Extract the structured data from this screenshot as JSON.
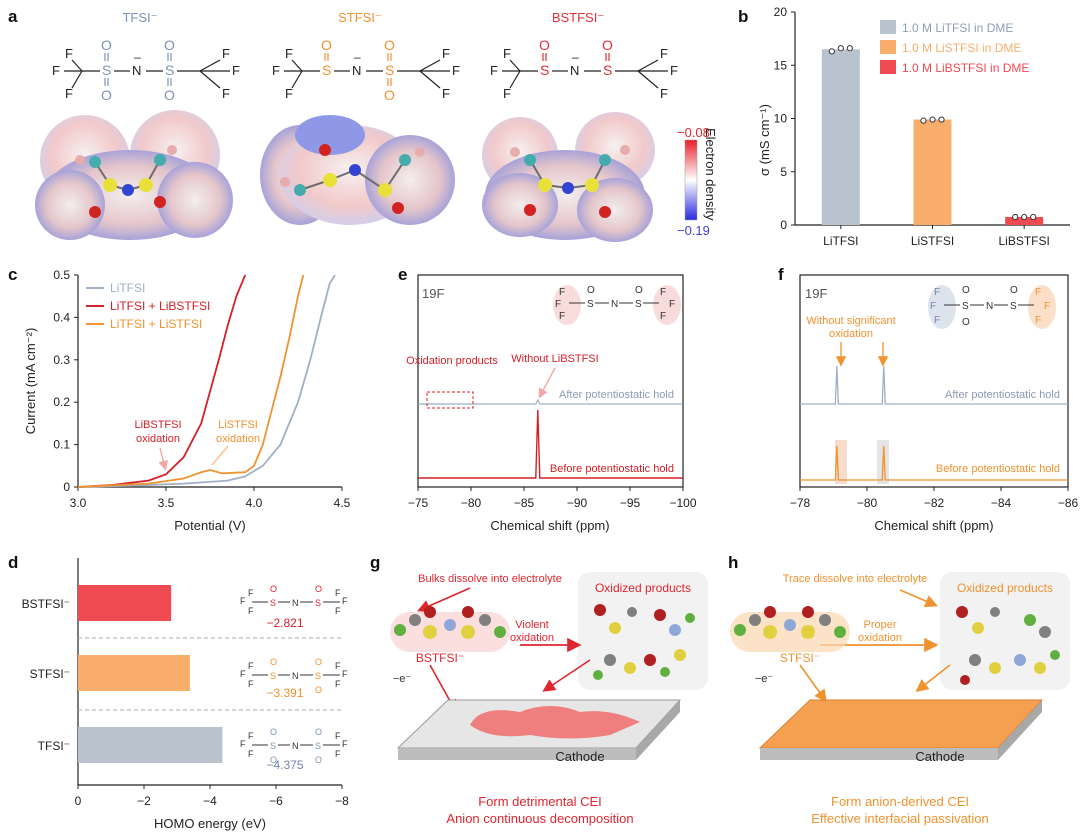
{
  "panels": {
    "a": {
      "label": "a",
      "anions": [
        {
          "name": "TFSI⁻",
          "color": "#7a93b8"
        },
        {
          "name": "STFSI⁻",
          "color": "#f0922e"
        },
        {
          "name": "BSTFSI⁻",
          "color": "#e0303a"
        }
      ],
      "colorbar": {
        "max": "−0.08",
        "min": "−0.19",
        "label": "Electron density"
      }
    },
    "b": {
      "label": "b"
    },
    "c": {
      "label": "c"
    },
    "d": {
      "label": "d"
    },
    "e": {
      "label": "e",
      "nucleus": "19F",
      "annotations": {
        "oxidation_products": "Oxidation products",
        "without": "Without LiBSTFSI",
        "after": "After potentiostatic hold",
        "before": "Before potentiostatic hold"
      }
    },
    "f": {
      "label": "f",
      "nucleus": "19F",
      "annotations": {
        "without_sig_1": "Without significant",
        "without_sig_2": "oxidation",
        "after": "After potentiostatic hold",
        "before": "Before potentiostatic hold"
      }
    },
    "g": {
      "label": "g",
      "dissolve": "Bulks dissolve into electrolyte",
      "oxidized": "Oxidized products",
      "arrow_1": "Violent",
      "arrow_2": "oxidation",
      "anion": "BSTFSI⁻",
      "electron": "−e⁻",
      "cathode": "Cathode",
      "caption_1": "Form detrimental CEI",
      "caption_2": "Anion continuous decomposition"
    },
    "h": {
      "label": "h",
      "dissolve": "Trace dissolve into electrolyte",
      "oxidized": "Oxidized products",
      "arrow_1": "Proper",
      "arrow_2": "oxidation",
      "anion": "STFSI⁻",
      "electron": "−e⁻",
      "cathode": "Cathode",
      "caption_1": "Form anion-derived CEI",
      "caption_2": "Effective interfacial passivation"
    }
  },
  "colors": {
    "tfsi": "#b8c3cd",
    "stfsi": "#f9ad6b",
    "bstfsi": "#f04a52",
    "red": "#e0252f",
    "orange": "#f0922e",
    "blue": "#7a93b8"
  },
  "chart_data": [
    {
      "id": "b",
      "type": "bar",
      "categories": [
        "LiTFSI",
        "LiSTFSI",
        "LiBSTFSI"
      ],
      "values": [
        16.5,
        9.9,
        0.75
      ],
      "points": [
        [
          16.3,
          16.6,
          16.6
        ],
        [
          9.8,
          9.9,
          9.9
        ],
        [
          0.75,
          0.75,
          0.75
        ]
      ],
      "colors": [
        "#b8c3cd",
        "#f9ad6b",
        "#f04a52"
      ],
      "legend": [
        "1.0 M LiTFSI in DME",
        "1.0 M LiSTFSI in DME",
        "1.0 M LiBSTFSI in DME"
      ],
      "ylabel": "σ (mS cm⁻¹)",
      "ylim": [
        0,
        20
      ],
      "yticks": [
        "0",
        "5",
        "10",
        "15",
        "20"
      ]
    },
    {
      "id": "c",
      "type": "line",
      "xlabel": "Potential (V)",
      "ylabel": "Current (mA cm⁻²)",
      "xlim": [
        3.0,
        4.5
      ],
      "ylim": [
        0,
        0.5
      ],
      "xticks": [
        "3.0",
        "3.5",
        "4.0",
        "4.5"
      ],
      "yticks": [
        "0",
        "0.1",
        "0.2",
        "0.3",
        "0.4",
        "0.5"
      ],
      "series": [
        {
          "name": "LiTFSI",
          "color": "#9fb0c6",
          "x": [
            3.0,
            3.3,
            3.6,
            3.85,
            3.95,
            4.05,
            4.15,
            4.25,
            4.32,
            4.38,
            4.43,
            4.46
          ],
          "y": [
            0.0,
            0.003,
            0.008,
            0.015,
            0.025,
            0.05,
            0.1,
            0.2,
            0.3,
            0.4,
            0.48,
            0.5
          ]
        },
        {
          "name": "LiTFSI + LiBSTFSI",
          "color": "#d42028",
          "x": [
            3.0,
            3.2,
            3.4,
            3.5,
            3.6,
            3.7,
            3.8,
            3.85,
            3.9,
            3.95
          ],
          "y": [
            0.0,
            0.005,
            0.015,
            0.03,
            0.07,
            0.15,
            0.3,
            0.38,
            0.45,
            0.5
          ]
        },
        {
          "name": "LiTFSI + LiSTFSI",
          "color": "#f0922e",
          "x": [
            3.0,
            3.4,
            3.6,
            3.7,
            3.75,
            3.82,
            3.95,
            4.0,
            4.05,
            4.1,
            4.15,
            4.2,
            4.25,
            4.28
          ],
          "y": [
            0.0,
            0.008,
            0.02,
            0.035,
            0.04,
            0.032,
            0.035,
            0.05,
            0.1,
            0.18,
            0.26,
            0.35,
            0.45,
            0.5
          ]
        }
      ],
      "annotations": [
        {
          "text": "LiBSTFSI",
          "text2": "oxidation",
          "color": "#d42028"
        },
        {
          "text": "LiSTFSI",
          "text2": "oxidation",
          "color": "#f0922e"
        }
      ]
    },
    {
      "id": "d",
      "type": "bar",
      "orientation": "horizontal",
      "categories": [
        "BSTFSI⁻",
        "STFSI⁻",
        "TFSI⁻"
      ],
      "values": [
        -2.821,
        -3.391,
        -4.375
      ],
      "labels": [
        "−2.821",
        "−3.391",
        "−4.375"
      ],
      "colors": [
        "#f04a52",
        "#f9ad6b",
        "#b8c3cd"
      ],
      "label_colors": [
        "#e0252f",
        "#f0922e",
        "#6f86aa"
      ],
      "xlabel": "HOMO energy (eV)",
      "xlim": [
        0,
        -8
      ],
      "xticks": [
        "0",
        "−2",
        "−4",
        "−6",
        "−8"
      ]
    },
    {
      "id": "e",
      "type": "line",
      "xlabel": "Chemical shift (ppm)",
      "xlim": [
        -75,
        -100
      ],
      "xticks": [
        "−75",
        "−80",
        "−85",
        "−90",
        "−95",
        "−100"
      ],
      "series": [
        {
          "name": "After potentiostatic hold",
          "color": "#9fb0c6",
          "peak_ppm": -86.3
        },
        {
          "name": "Before potentiostatic hold",
          "color": "#d42028",
          "peak_ppm": -86.3
        }
      ]
    },
    {
      "id": "f",
      "type": "line",
      "xlabel": "Chemical shift (ppm)",
      "xlim": [
        -78,
        -86
      ],
      "xticks": [
        "−78",
        "−80",
        "−82",
        "−84",
        "−86"
      ],
      "series": [
        {
          "name": "After potentiostatic hold",
          "color": "#9fb0c6",
          "peaks_ppm": [
            -79.1,
            -80.5
          ]
        },
        {
          "name": "Before potentiostatic hold",
          "color": "#f0922e",
          "peaks_ppm": [
            -79.1,
            -80.5
          ]
        }
      ]
    }
  ]
}
